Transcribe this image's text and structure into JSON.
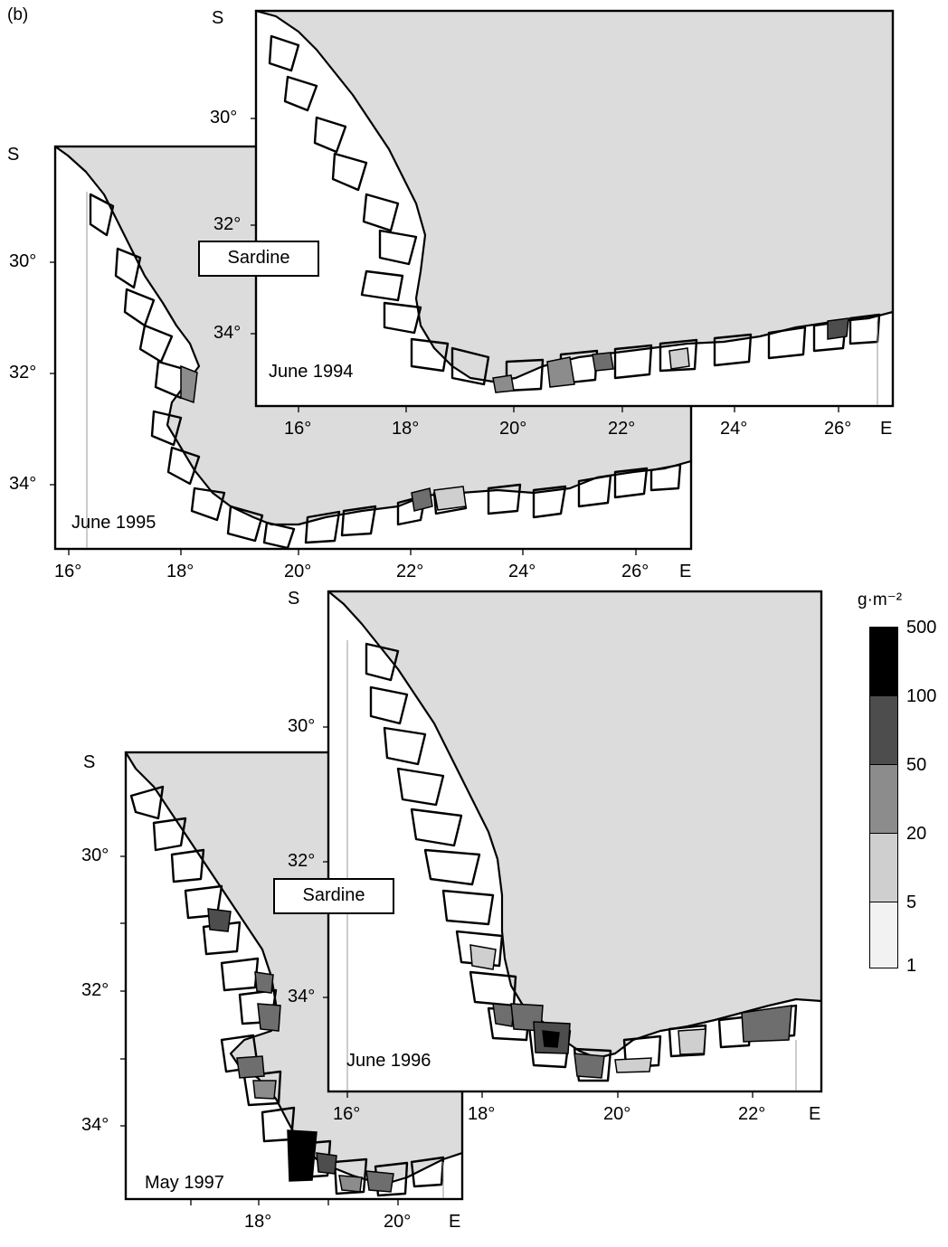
{
  "panel_letter": "(b)",
  "species_label": "Sardine",
  "maps": {
    "m1994": {
      "survey": "June 1994",
      "x_ticks": [
        "16°",
        "18°",
        "20°",
        "22°",
        "24°",
        "26°"
      ],
      "x_axis_label": "E",
      "y_ticks": [
        "30°",
        "32°",
        "34°"
      ],
      "y_axis_label": "S"
    },
    "m1995": {
      "survey": "June 1995",
      "x_ticks": [
        "16°",
        "18°",
        "20°",
        "22°",
        "24°",
        "26°"
      ],
      "x_axis_label": "E",
      "y_ticks": [
        "30°",
        "32°",
        "34°"
      ],
      "y_axis_label": "S"
    },
    "m1996": {
      "survey": "June 1996",
      "x_ticks": [
        "16°",
        "18°",
        "20°",
        "22°"
      ],
      "x_axis_label": "E",
      "y_ticks": [
        "30°",
        "32°",
        "34°"
      ],
      "y_axis_label": "S"
    },
    "m1997": {
      "survey": "May 1997",
      "x_ticks": [
        "18°",
        "20°"
      ],
      "x_axis_label": "E",
      "y_ticks": [
        "30°",
        "32°",
        "34°"
      ],
      "y_axis_label": "S"
    }
  },
  "legend": {
    "unit": "g·m⁻²",
    "levels": [
      "500",
      "100",
      "50",
      "20",
      "5",
      "1"
    ],
    "colors": [
      "#000000",
      "#4d4d4d",
      "#8c8c8c",
      "#cfcfcf",
      "#f2f2f2"
    ]
  }
}
